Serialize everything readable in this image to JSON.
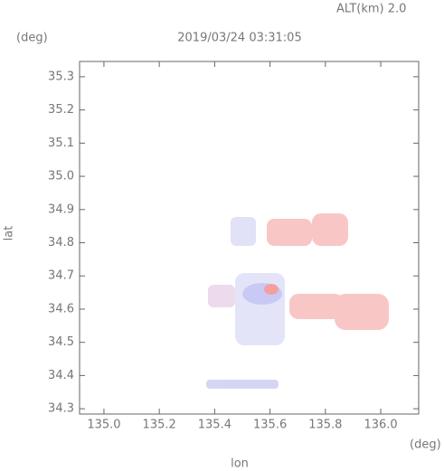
{
  "chart_data": {
    "type": "radar-map",
    "title": "2019/03/24 03:31:05",
    "altitude_label": "ALT(km) 2.0",
    "x_label": "lon",
    "x_unit": "(deg)",
    "y_label": "lat",
    "y_unit": "(deg)",
    "xlim": [
      134.912,
      136.137
    ],
    "ylim": [
      34.284,
      35.346
    ],
    "xticks": [
      {
        "value": 135.0,
        "label": "135.0"
      },
      135.2,
      135.4,
      135.6,
      135.8,
      {
        "value": 136.0,
        "label": "136.0"
      }
    ],
    "yticks": [
      34.3,
      34.4,
      34.5,
      34.6,
      34.7,
      34.8,
      34.9,
      {
        "value": 35.0,
        "label": "35.0"
      },
      35.1,
      35.2,
      35.3
    ]
  }
}
